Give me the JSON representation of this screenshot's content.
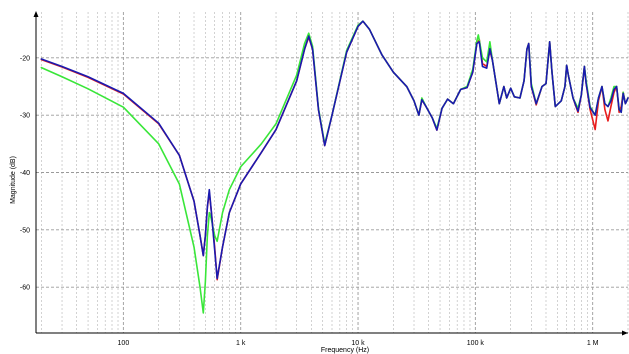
{
  "chart_data": {
    "type": "line",
    "title": "",
    "xlabel": "Frequency (Hz)",
    "ylabel": "Magnitude (dB)",
    "x_scale": "log",
    "xlim": [
      18,
      2000000
    ],
    "ylim": [
      -68,
      -12
    ],
    "grid": true,
    "x_ticks": [
      {
        "value": 100,
        "label": "100"
      },
      {
        "value": 1000,
        "label": "1 k"
      },
      {
        "value": 10000,
        "label": "10 k"
      },
      {
        "value": 100000,
        "label": "100 k"
      },
      {
        "value": 1000000,
        "label": "1 M"
      }
    ],
    "y_ticks": [
      {
        "value": -20,
        "label": "-20"
      },
      {
        "value": -30,
        "label": "-30"
      },
      {
        "value": -40,
        "label": "-40"
      },
      {
        "value": -50,
        "label": "-50"
      },
      {
        "value": -60,
        "label": "-60"
      }
    ],
    "series": [
      {
        "color": "#e81c1c",
        "points": [
          [
            20,
            -20.3
          ],
          [
            30,
            -21.6
          ],
          [
            50,
            -23.4
          ],
          [
            100,
            -26.3
          ],
          [
            200,
            -31.5
          ],
          [
            300,
            -37
          ],
          [
            400,
            -45
          ],
          [
            450,
            -51
          ],
          [
            480,
            -54.5
          ],
          [
            500,
            -51
          ],
          [
            520,
            -46
          ],
          [
            540,
            -43.5
          ],
          [
            560,
            -46.5
          ],
          [
            600,
            -53
          ],
          [
            630,
            -58.7
          ],
          [
            700,
            -53
          ],
          [
            800,
            -47
          ],
          [
            1000,
            -42
          ],
          [
            1500,
            -36.5
          ],
          [
            2000,
            -32.5
          ],
          [
            3000,
            -24
          ],
          [
            3500,
            -18.5
          ],
          [
            3800,
            -16.4
          ],
          [
            4100,
            -18.5
          ],
          [
            4600,
            -29
          ],
          [
            5200,
            -35.3
          ],
          [
            6000,
            -30
          ],
          [
            8000,
            -19
          ],
          [
            10000,
            -14.5
          ],
          [
            11000,
            -13.6
          ],
          [
            12500,
            -15
          ],
          [
            16000,
            -19.5
          ],
          [
            20000,
            -22.5
          ],
          [
            26000,
            -25
          ],
          [
            30000,
            -27.5
          ],
          [
            33000,
            -30
          ],
          [
            35000,
            -27.3
          ],
          [
            38000,
            -28.5
          ],
          [
            43000,
            -30.5
          ],
          [
            47000,
            -32.6
          ],
          [
            52000,
            -28.8
          ],
          [
            58000,
            -27.2
          ],
          [
            65000,
            -28
          ],
          [
            75000,
            -25.5
          ],
          [
            85000,
            -25.2
          ],
          [
            95000,
            -22.5
          ],
          [
            103000,
            -17.5
          ],
          [
            108000,
            -16.8
          ],
          [
            115000,
            -21
          ],
          [
            125000,
            -21.5
          ],
          [
            133000,
            -18.7
          ],
          [
            140000,
            -20.5
          ],
          [
            160000,
            -28
          ],
          [
            175000,
            -25
          ],
          [
            185000,
            -27
          ],
          [
            200000,
            -25.3
          ],
          [
            215000,
            -26.8
          ],
          [
            240000,
            -27
          ],
          [
            260000,
            -24
          ],
          [
            275000,
            -18.5
          ],
          [
            285000,
            -17.5
          ],
          [
            300000,
            -25
          ],
          [
            330000,
            -28.2
          ],
          [
            370000,
            -25
          ],
          [
            400000,
            -24.5
          ],
          [
            430000,
            -17.2
          ],
          [
            450000,
            -22.5
          ],
          [
            480000,
            -28.5
          ],
          [
            540000,
            -27.5
          ],
          [
            580000,
            -25
          ],
          [
            600000,
            -21.3
          ],
          [
            620000,
            -23
          ],
          [
            680000,
            -27
          ],
          [
            750000,
            -29.5
          ],
          [
            800000,
            -26.5
          ],
          [
            850000,
            -21.5
          ],
          [
            880000,
            -24.5
          ],
          [
            950000,
            -29
          ],
          [
            1050000,
            -32.5
          ],
          [
            1120000,
            -27.5
          ],
          [
            1200000,
            -25
          ],
          [
            1270000,
            -29
          ],
          [
            1350000,
            -31
          ],
          [
            1430000,
            -28.5
          ],
          [
            1520000,
            -26
          ],
          [
            1600000,
            -25
          ],
          [
            1680000,
            -29.5
          ],
          [
            1750000,
            -28.5
          ],
          [
            1820000,
            -26
          ],
          [
            1900000,
            -28
          ],
          [
            2000000,
            -27
          ]
        ]
      },
      {
        "color": "#39e639",
        "points": [
          [
            20,
            -21.7
          ],
          [
            30,
            -23.3
          ],
          [
            50,
            -25.4
          ],
          [
            100,
            -28.6
          ],
          [
            200,
            -35
          ],
          [
            300,
            -42
          ],
          [
            400,
            -53
          ],
          [
            450,
            -60
          ],
          [
            480,
            -64.5
          ],
          [
            500,
            -59
          ],
          [
            520,
            -51
          ],
          [
            540,
            -47
          ],
          [
            560,
            -48
          ],
          [
            600,
            -51
          ],
          [
            630,
            -52
          ],
          [
            700,
            -47
          ],
          [
            800,
            -43
          ],
          [
            1000,
            -39
          ],
          [
            1500,
            -35
          ],
          [
            2000,
            -31.5
          ],
          [
            3000,
            -23
          ],
          [
            3500,
            -17.5
          ],
          [
            3800,
            -15.7
          ],
          [
            4100,
            -18
          ],
          [
            4600,
            -28.8
          ],
          [
            5200,
            -35
          ],
          [
            6000,
            -30
          ],
          [
            8000,
            -18.7
          ],
          [
            10000,
            -14.3
          ],
          [
            11000,
            -13.6
          ],
          [
            12500,
            -15
          ],
          [
            16000,
            -19.5
          ],
          [
            20000,
            -22.5
          ],
          [
            26000,
            -25
          ],
          [
            30000,
            -27.5
          ],
          [
            33000,
            -30
          ],
          [
            35000,
            -27
          ],
          [
            38000,
            -28.5
          ],
          [
            43000,
            -30.5
          ],
          [
            47000,
            -32.3
          ],
          [
            52000,
            -28.8
          ],
          [
            58000,
            -27.2
          ],
          [
            65000,
            -28
          ],
          [
            75000,
            -25.5
          ],
          [
            85000,
            -25
          ],
          [
            95000,
            -22
          ],
          [
            103000,
            -17
          ],
          [
            106000,
            -16
          ],
          [
            115000,
            -20
          ],
          [
            125000,
            -20.7
          ],
          [
            133000,
            -17.2
          ],
          [
            140000,
            -20.5
          ],
          [
            160000,
            -28
          ],
          [
            175000,
            -25
          ],
          [
            185000,
            -27
          ],
          [
            200000,
            -25.3
          ],
          [
            215000,
            -26.8
          ],
          [
            240000,
            -27
          ],
          [
            260000,
            -24
          ],
          [
            275000,
            -18.5
          ],
          [
            285000,
            -17.5
          ],
          [
            300000,
            -24.5
          ],
          [
            330000,
            -28
          ],
          [
            370000,
            -25
          ],
          [
            400000,
            -24.5
          ],
          [
            430000,
            -17.2
          ],
          [
            450000,
            -22.5
          ],
          [
            480000,
            -28.5
          ],
          [
            540000,
            -27.5
          ],
          [
            580000,
            -25
          ],
          [
            600000,
            -21.3
          ],
          [
            620000,
            -23
          ],
          [
            680000,
            -27
          ],
          [
            750000,
            -28.8
          ],
          [
            800000,
            -26.5
          ],
          [
            850000,
            -21.5
          ],
          [
            880000,
            -24
          ],
          [
            950000,
            -28.5
          ],
          [
            1050000,
            -30
          ],
          [
            1120000,
            -27
          ],
          [
            1200000,
            -25
          ],
          [
            1270000,
            -28
          ],
          [
            1350000,
            -28.5
          ],
          [
            1430000,
            -27
          ],
          [
            1520000,
            -25
          ],
          [
            1600000,
            -25
          ],
          [
            1680000,
            -29
          ],
          [
            1750000,
            -29.5
          ],
          [
            1820000,
            -26
          ],
          [
            1900000,
            -28
          ],
          [
            2000000,
            -27
          ]
        ]
      },
      {
        "color": "#1a1ab0",
        "points": [
          [
            20,
            -20.2
          ],
          [
            30,
            -21.5
          ],
          [
            50,
            -23.3
          ],
          [
            100,
            -26.2
          ],
          [
            200,
            -31.4
          ],
          [
            300,
            -37
          ],
          [
            400,
            -45
          ],
          [
            450,
            -51
          ],
          [
            480,
            -54.5
          ],
          [
            500,
            -51
          ],
          [
            520,
            -46
          ],
          [
            540,
            -43
          ],
          [
            560,
            -46.5
          ],
          [
            600,
            -53.5
          ],
          [
            630,
            -58.5
          ],
          [
            700,
            -53
          ],
          [
            800,
            -47
          ],
          [
            1000,
            -42
          ],
          [
            1500,
            -36.5
          ],
          [
            2000,
            -32.5
          ],
          [
            3000,
            -24
          ],
          [
            3500,
            -18.5
          ],
          [
            3800,
            -16.2
          ],
          [
            4100,
            -18.5
          ],
          [
            4600,
            -29
          ],
          [
            5200,
            -35.3
          ],
          [
            6000,
            -30
          ],
          [
            8000,
            -19
          ],
          [
            10000,
            -14.5
          ],
          [
            11000,
            -13.6
          ],
          [
            12500,
            -15
          ],
          [
            16000,
            -19.5
          ],
          [
            20000,
            -22.5
          ],
          [
            26000,
            -25
          ],
          [
            30000,
            -27.5
          ],
          [
            33000,
            -30
          ],
          [
            35000,
            -27.3
          ],
          [
            38000,
            -28.5
          ],
          [
            43000,
            -30.5
          ],
          [
            47000,
            -32.6
          ],
          [
            52000,
            -28.8
          ],
          [
            58000,
            -27.2
          ],
          [
            65000,
            -28
          ],
          [
            75000,
            -25.5
          ],
          [
            85000,
            -25.2
          ],
          [
            95000,
            -22.5
          ],
          [
            103000,
            -17.5
          ],
          [
            108000,
            -17.2
          ],
          [
            115000,
            -21.5
          ],
          [
            125000,
            -21.8
          ],
          [
            133000,
            -18.4
          ],
          [
            140000,
            -20.5
          ],
          [
            160000,
            -28
          ],
          [
            175000,
            -25
          ],
          [
            185000,
            -27
          ],
          [
            200000,
            -25.3
          ],
          [
            215000,
            -26.8
          ],
          [
            240000,
            -27
          ],
          [
            260000,
            -24
          ],
          [
            275000,
            -18.5
          ],
          [
            285000,
            -17.5
          ],
          [
            300000,
            -25
          ],
          [
            330000,
            -28
          ],
          [
            370000,
            -25
          ],
          [
            400000,
            -24.5
          ],
          [
            430000,
            -17.2
          ],
          [
            450000,
            -22.5
          ],
          [
            480000,
            -28.5
          ],
          [
            540000,
            -27.5
          ],
          [
            580000,
            -25
          ],
          [
            600000,
            -21.3
          ],
          [
            620000,
            -23
          ],
          [
            680000,
            -27
          ],
          [
            750000,
            -29.3
          ],
          [
            800000,
            -26.5
          ],
          [
            850000,
            -21.5
          ],
          [
            880000,
            -24.5
          ],
          [
            950000,
            -28.7
          ],
          [
            1050000,
            -30
          ],
          [
            1120000,
            -27
          ],
          [
            1200000,
            -25
          ],
          [
            1270000,
            -28
          ],
          [
            1350000,
            -28.5
          ],
          [
            1430000,
            -27.5
          ],
          [
            1520000,
            -25.5
          ],
          [
            1600000,
            -25
          ],
          [
            1680000,
            -29
          ],
          [
            1750000,
            -29.5
          ],
          [
            1820000,
            -26.2
          ],
          [
            1900000,
            -28
          ],
          [
            2000000,
            -27
          ]
        ]
      }
    ]
  }
}
